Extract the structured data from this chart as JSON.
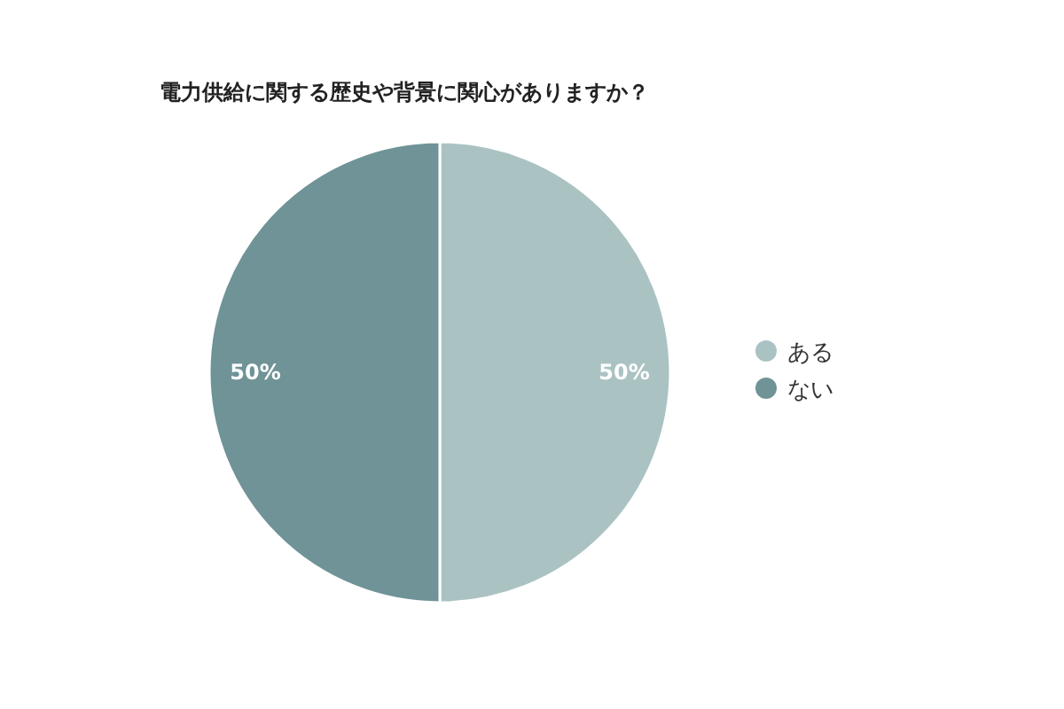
{
  "chart_data": {
    "type": "pie",
    "title": "電力供給に関する歴史や背景に関心がありますか？",
    "categories": [
      "ある",
      "ない"
    ],
    "values": [
      50,
      50
    ],
    "colors": [
      "#abc2c3",
      "#6f9397"
    ],
    "value_labels": [
      "50%",
      "50%"
    ],
    "legend": "right"
  }
}
